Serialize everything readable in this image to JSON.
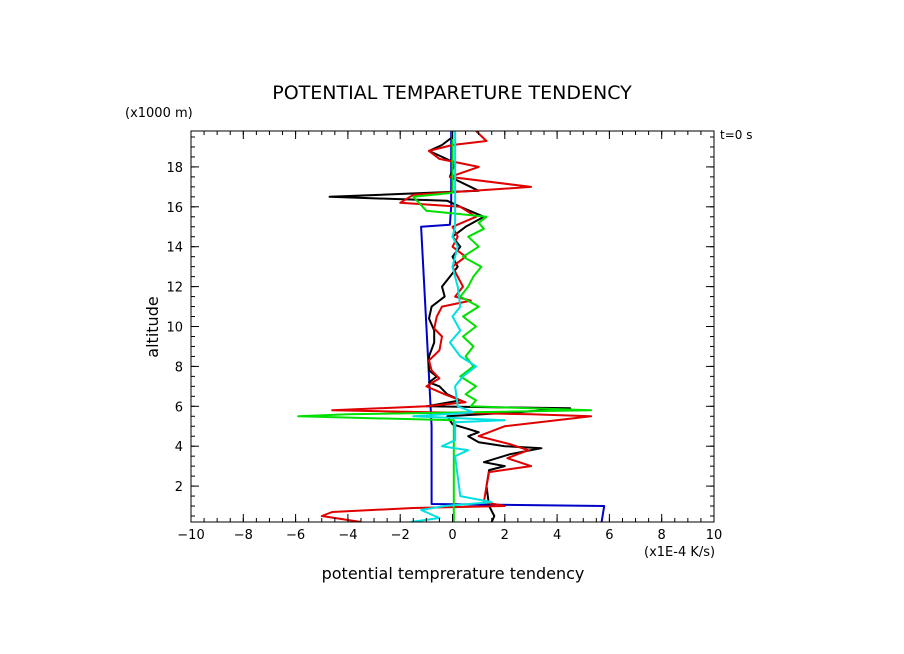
{
  "chart_data": {
    "type": "line",
    "title": "POTENTIAL TEMPARETURE TENDENCY",
    "xlabel": "potential temprerature tendency",
    "ylabel": "altitude",
    "x_unit": "(x1E-4 K/s)",
    "y_unit": "(x1000 m)",
    "time_label": "t=0 s",
    "xlim": [
      -10,
      10
    ],
    "ylim": [
      0.2,
      19.8
    ],
    "x_ticks": [
      -10,
      -8,
      -6,
      -4,
      -2,
      0,
      2,
      4,
      6,
      8,
      10
    ],
    "y_ticks": [
      2,
      4,
      6,
      8,
      10,
      12,
      14,
      16,
      18
    ],
    "grid": false,
    "series": [
      {
        "color": "#0000c8",
        "points": [
          [
            5.7,
            0.2
          ],
          [
            5.8,
            1.0
          ],
          [
            -0.8,
            1.1
          ],
          [
            -0.8,
            5.0
          ],
          [
            -1.0,
            10.0
          ],
          [
            -1.2,
            15.0
          ],
          [
            -0.1,
            15.1
          ],
          [
            -0.05,
            16.0
          ],
          [
            -0.05,
            19.8
          ]
        ]
      },
      {
        "color": "#000000",
        "points": [
          [
            1.5,
            0.2
          ],
          [
            1.6,
            0.5
          ],
          [
            1.4,
            1.0
          ],
          [
            1.3,
            2.0
          ],
          [
            1.4,
            2.8
          ],
          [
            2.0,
            3.0
          ],
          [
            1.2,
            3.2
          ],
          [
            2.2,
            3.6
          ],
          [
            3.4,
            3.9
          ],
          [
            2.0,
            4.0
          ],
          [
            1.0,
            4.2
          ],
          [
            0.6,
            4.5
          ],
          [
            1.0,
            4.7
          ],
          [
            0.5,
            4.9
          ],
          [
            0.0,
            5.1
          ],
          [
            -0.2,
            5.5
          ],
          [
            2.5,
            5.7
          ],
          [
            4.5,
            5.9
          ],
          [
            -1.0,
            6.0
          ],
          [
            0.3,
            6.3
          ],
          [
            -0.2,
            6.6
          ],
          [
            -0.5,
            7.0
          ],
          [
            -0.9,
            7.2
          ],
          [
            -0.6,
            7.5
          ],
          [
            -0.9,
            7.8
          ],
          [
            -0.9,
            8.5
          ],
          [
            -0.7,
            9.2
          ],
          [
            -0.7,
            9.8
          ],
          [
            -0.9,
            10.4
          ],
          [
            -0.8,
            11.0
          ],
          [
            -0.3,
            11.5
          ],
          [
            -0.4,
            12.0
          ],
          [
            -0.1,
            12.5
          ],
          [
            0.2,
            13.0
          ],
          [
            0.0,
            13.5
          ],
          [
            0.3,
            14.0
          ],
          [
            0.0,
            14.5
          ],
          [
            0.5,
            15.0
          ],
          [
            1.2,
            15.5
          ],
          [
            0.3,
            16.0
          ],
          [
            -0.2,
            16.3
          ],
          [
            -4.7,
            16.5
          ],
          [
            1.0,
            16.8
          ],
          [
            -0.1,
            17.5
          ],
          [
            0.1,
            18.2
          ],
          [
            -0.9,
            18.8
          ],
          [
            -0.4,
            19.1
          ],
          [
            0.0,
            19.5
          ]
        ]
      },
      {
        "color": "#e00000",
        "points": [
          [
            -3.5,
            0.2
          ],
          [
            -5.0,
            0.5
          ],
          [
            -4.6,
            0.7
          ],
          [
            -1.5,
            0.9
          ],
          [
            2.0,
            1.0
          ],
          [
            1.2,
            1.2
          ],
          [
            1.3,
            2.0
          ],
          [
            1.4,
            2.7
          ],
          [
            3.0,
            3.0
          ],
          [
            2.1,
            3.4
          ],
          [
            2.9,
            3.8
          ],
          [
            2.2,
            4.1
          ],
          [
            1.0,
            4.5
          ],
          [
            2.0,
            5.0
          ],
          [
            5.3,
            5.5
          ],
          [
            3.0,
            5.6
          ],
          [
            -4.6,
            5.8
          ],
          [
            -1.0,
            6.0
          ],
          [
            0.5,
            6.2
          ],
          [
            -0.3,
            6.6
          ],
          [
            -1.0,
            7.0
          ],
          [
            -0.5,
            7.4
          ],
          [
            -0.8,
            7.8
          ],
          [
            -0.9,
            8.3
          ],
          [
            -0.5,
            8.8
          ],
          [
            -0.4,
            9.5
          ],
          [
            -0.7,
            9.9
          ],
          [
            -0.6,
            10.5
          ],
          [
            -0.4,
            11.0
          ],
          [
            0.7,
            11.3
          ],
          [
            0.1,
            11.5
          ],
          [
            0.4,
            12.0
          ],
          [
            0.2,
            12.5
          ],
          [
            0.0,
            13.0
          ],
          [
            0.5,
            13.5
          ],
          [
            0.0,
            14.0
          ],
          [
            0.2,
            14.5
          ],
          [
            0.0,
            15.0
          ],
          [
            0.9,
            15.5
          ],
          [
            0.3,
            16.0
          ],
          [
            -2.0,
            16.2
          ],
          [
            -1.5,
            16.6
          ],
          [
            3.0,
            17.0
          ],
          [
            -0.1,
            17.5
          ],
          [
            1.0,
            18.0
          ],
          [
            -0.5,
            18.4
          ],
          [
            -0.9,
            18.8
          ],
          [
            0.0,
            19.1
          ],
          [
            1.3,
            19.3
          ],
          [
            0.9,
            19.8
          ]
        ]
      },
      {
        "color": "#00e000",
        "points": [
          [
            0.05,
            0.2
          ],
          [
            0.05,
            5.3
          ],
          [
            -5.9,
            5.5
          ],
          [
            -4.0,
            5.6
          ],
          [
            5.3,
            5.8
          ],
          [
            0.7,
            6.0
          ],
          [
            0.9,
            6.3
          ],
          [
            0.5,
            6.6
          ],
          [
            0.9,
            7.0
          ],
          [
            0.3,
            7.5
          ],
          [
            0.8,
            8.0
          ],
          [
            0.5,
            8.5
          ],
          [
            0.8,
            9.0
          ],
          [
            0.4,
            9.5
          ],
          [
            0.9,
            10.0
          ],
          [
            0.4,
            10.5
          ],
          [
            1.0,
            11.0
          ],
          [
            0.3,
            11.5
          ],
          [
            0.6,
            12.0
          ],
          [
            0.8,
            12.5
          ],
          [
            1.1,
            13.0
          ],
          [
            0.4,
            13.5
          ],
          [
            1.0,
            14.0
          ],
          [
            0.6,
            14.5
          ],
          [
            1.2,
            14.9
          ],
          [
            1.0,
            15.2
          ],
          [
            1.3,
            15.5
          ],
          [
            -1.0,
            15.8
          ],
          [
            -1.5,
            16.5
          ],
          [
            0.0,
            16.7
          ],
          [
            0.0,
            19.8
          ]
        ]
      },
      {
        "color": "#00e0e0",
        "points": [
          [
            -1.6,
            0.2
          ],
          [
            -0.5,
            0.4
          ],
          [
            -1.2,
            0.8
          ],
          [
            -0.3,
            1.0
          ],
          [
            1.5,
            1.2
          ],
          [
            0.3,
            1.5
          ],
          [
            0.1,
            3.5
          ],
          [
            0.6,
            3.8
          ],
          [
            -0.4,
            4.0
          ],
          [
            0.1,
            4.3
          ],
          [
            0.1,
            5.2
          ],
          [
            2.0,
            5.3
          ],
          [
            -1.5,
            5.5
          ],
          [
            0.8,
            5.7
          ],
          [
            0.2,
            6.0
          ],
          [
            0.1,
            7.0
          ],
          [
            0.4,
            7.5
          ],
          [
            0.9,
            8.0
          ],
          [
            0.3,
            8.5
          ],
          [
            -0.1,
            9.2
          ],
          [
            0.3,
            9.8
          ],
          [
            0.0,
            10.5
          ],
          [
            0.3,
            11.0
          ],
          [
            0.2,
            12.0
          ],
          [
            0.0,
            13.0
          ],
          [
            0.2,
            14.0
          ],
          [
            0.0,
            14.5
          ],
          [
            0.1,
            15.0
          ],
          [
            0.1,
            19.8
          ]
        ]
      }
    ]
  }
}
